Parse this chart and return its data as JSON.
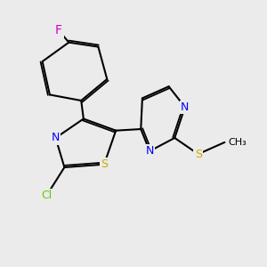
{
  "bg_color": "#ebebeb",
  "fig_width": 3.0,
  "fig_height": 3.0,
  "dpi": 100,
  "bond_color": "#000000",
  "bond_width": 1.5,
  "font_size": 9,
  "atoms": {
    "F": {
      "color": "#cc00cc",
      "label": "F"
    },
    "N": {
      "color": "#0000ff",
      "label": "N"
    },
    "S": {
      "color": "#ccaa00",
      "label": "S"
    },
    "Cl": {
      "color": "#66cc00",
      "label": "Cl"
    }
  }
}
